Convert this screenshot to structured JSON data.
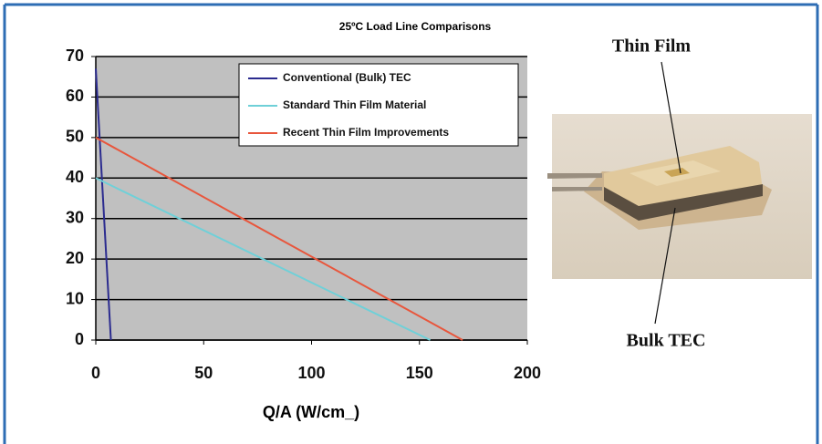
{
  "chart_data": {
    "type": "line",
    "title": "25ºC Load Line Comparisons",
    "x_label": "Q/A (W/cm_)",
    "xlim": [
      0,
      200
    ],
    "xticks": [
      0,
      50,
      100,
      150,
      200
    ],
    "ylim": [
      0,
      70
    ],
    "yticks": [
      0,
      10,
      20,
      30,
      40,
      50,
      60,
      70
    ],
    "grid": true,
    "series": [
      {
        "name": "Conventional (Bulk) TEC",
        "color": "#2b2b8f",
        "x": [
          0,
          7
        ],
        "values": [
          67,
          0
        ]
      },
      {
        "name": "Standard Thin Film Material",
        "color": "#6fd0d8",
        "x": [
          0,
          155
        ],
        "values": [
          40,
          0
        ]
      },
      {
        "name": "Recent Thin Film Improvements",
        "color": "#e8563c",
        "x": [
          0,
          170
        ],
        "values": [
          50,
          0
        ]
      }
    ],
    "annotations": [
      "Thin Film",
      "Bulk TEC"
    ]
  }
}
